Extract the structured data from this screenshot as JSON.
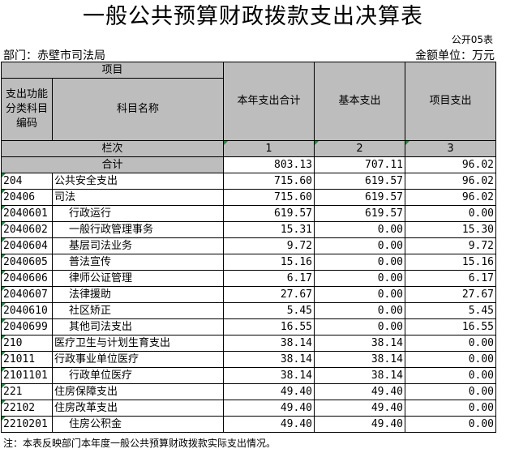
{
  "title": "一般公共预算财政拨款支出决算表",
  "form_no": "公开05表",
  "department": "部门：赤壁市司法局",
  "unit": "金额单位：万元",
  "headers": {
    "item": "项目",
    "code": "支出功能\n分类科目\n编码",
    "name": "科目名称",
    "total": "本年支出合计",
    "basic": "基本支出",
    "project": "项目支出",
    "row_label": "栏次",
    "col1": "1",
    "col2": "2",
    "col3": "3"
  },
  "total_row": {
    "label": "合计",
    "total": "803.13",
    "basic": "707.11",
    "project": "96.02"
  },
  "rows": [
    {
      "code": "204",
      "name": "公共安全支出",
      "indent": 0,
      "total": "715.60",
      "basic": "619.57",
      "project": "96.02"
    },
    {
      "code": "20406",
      "name": "司法",
      "indent": 0,
      "total": "715.60",
      "basic": "619.57",
      "project": "96.02"
    },
    {
      "code": "2040601",
      "name": "行政运行",
      "indent": 1,
      "total": "619.57",
      "basic": "619.57",
      "project": "0.00"
    },
    {
      "code": "2040602",
      "name": "一般行政管理事务",
      "indent": 1,
      "total": "15.31",
      "basic": "0.00",
      "project": "15.30"
    },
    {
      "code": "2040604",
      "name": "基层司法业务",
      "indent": 1,
      "total": "9.72",
      "basic": "0.00",
      "project": "9.72"
    },
    {
      "code": "2040605",
      "name": "普法宣传",
      "indent": 1,
      "total": "15.16",
      "basic": "0.00",
      "project": "15.16"
    },
    {
      "code": "2040606",
      "name": "律师公证管理",
      "indent": 1,
      "total": "6.17",
      "basic": "0.00",
      "project": "6.17"
    },
    {
      "code": "2040607",
      "name": "法律援助",
      "indent": 1,
      "total": "27.67",
      "basic": "0.00",
      "project": "27.67"
    },
    {
      "code": "2040610",
      "name": "社区矫正",
      "indent": 1,
      "total": "5.45",
      "basic": "0.00",
      "project": "5.45"
    },
    {
      "code": "2040699",
      "name": "其他司法支出",
      "indent": 1,
      "total": "16.55",
      "basic": "0.00",
      "project": "16.55"
    },
    {
      "code": "210",
      "name": "医疗卫生与计划生育支出",
      "indent": 0,
      "total": "38.14",
      "basic": "38.14",
      "project": "0.00"
    },
    {
      "code": "21011",
      "name": "行政事业单位医疗",
      "indent": 0,
      "total": "38.14",
      "basic": "38.14",
      "project": "0.00"
    },
    {
      "code": "2101101",
      "name": "行政单位医疗",
      "indent": 1,
      "total": "38.14",
      "basic": "38.14",
      "project": "0.00"
    },
    {
      "code": "221",
      "name": "住房保障支出",
      "indent": 0,
      "total": "49.40",
      "basic": "49.40",
      "project": "0.00"
    },
    {
      "code": "22102",
      "name": "住房改革支出",
      "indent": 0,
      "total": "49.40",
      "basic": "49.40",
      "project": "0.00"
    },
    {
      "code": "2210201",
      "name": "住房公积金",
      "indent": 1,
      "total": "49.40",
      "basic": "49.40",
      "project": "0.00"
    }
  ],
  "note": "注：本表反映部门本年度一般公共预算财政拨款实际支出情况。"
}
